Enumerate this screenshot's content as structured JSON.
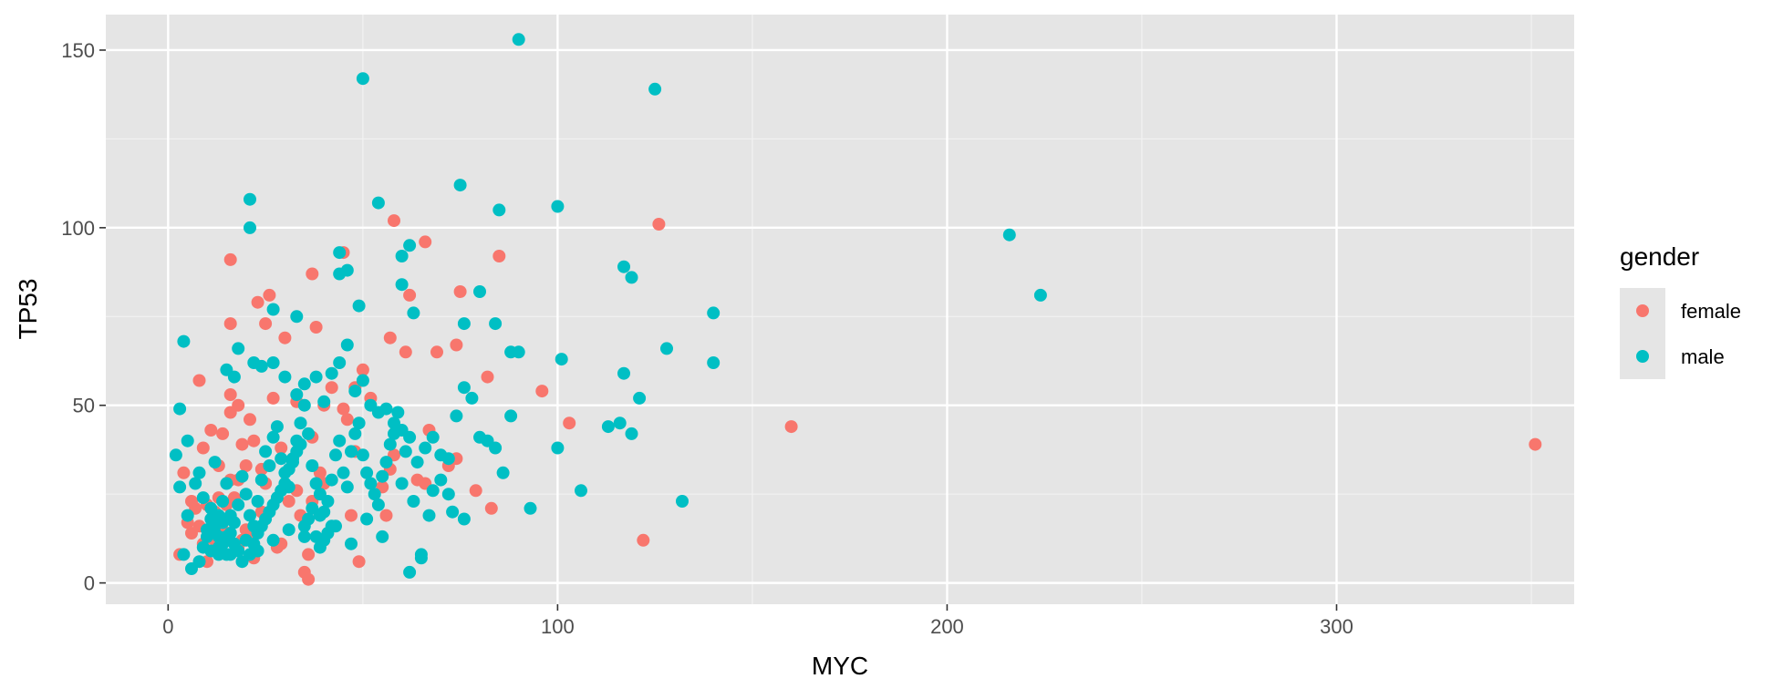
{
  "chart_data": {
    "type": "scatter",
    "xlabel": "MYC",
    "ylabel": "TP53",
    "xlim": [
      -16,
      361
    ],
    "ylim": [
      -6,
      160
    ],
    "x_ticks": [
      0,
      100,
      200,
      300
    ],
    "x_tick_labels": [
      "0",
      "100",
      "200",
      "300"
    ],
    "y_ticks": [
      0,
      50,
      100,
      150
    ],
    "y_tick_labels": [
      "0",
      "50",
      "100",
      "150"
    ],
    "grid": true,
    "background": "#e5e5e5",
    "legend": {
      "title": "gender",
      "position": "right",
      "entries": [
        {
          "label": "female",
          "color": "#F8766D"
        },
        {
          "label": "male",
          "color": "#00BFC4"
        }
      ]
    },
    "series": [
      {
        "name": "female",
        "color": "#F8766D",
        "points": [
          [
            16,
            91
          ],
          [
            26,
            81
          ],
          [
            23,
            79
          ],
          [
            30,
            69
          ],
          [
            25,
            73
          ],
          [
            16,
            73
          ],
          [
            37,
            87
          ],
          [
            38,
            72
          ],
          [
            58,
            102
          ],
          [
            66,
            96
          ],
          [
            45,
            93
          ],
          [
            62,
            81
          ],
          [
            75,
            82
          ],
          [
            85,
            92
          ],
          [
            126,
            101
          ],
          [
            57,
            69
          ],
          [
            67,
            43
          ],
          [
            74,
            35
          ],
          [
            96,
            54
          ],
          [
            103,
            45
          ],
          [
            160,
            44
          ],
          [
            351,
            39
          ],
          [
            122,
            12
          ],
          [
            83,
            21
          ],
          [
            79,
            26
          ],
          [
            82,
            58
          ],
          [
            69,
            65
          ],
          [
            74,
            67
          ],
          [
            61,
            65
          ],
          [
            52,
            52
          ],
          [
            50,
            60
          ],
          [
            48,
            55
          ],
          [
            42,
            55
          ],
          [
            45,
            49
          ],
          [
            33,
            51
          ],
          [
            27,
            52
          ],
          [
            18,
            50
          ],
          [
            16,
            48
          ],
          [
            16,
            53
          ],
          [
            8,
            57
          ],
          [
            11,
            43
          ],
          [
            14,
            42
          ],
          [
            9,
            38
          ],
          [
            21,
            46
          ],
          [
            19,
            39
          ],
          [
            13,
            33
          ],
          [
            20,
            33
          ],
          [
            24,
            32
          ],
          [
            16,
            29
          ],
          [
            18,
            29
          ],
          [
            25,
            28
          ],
          [
            13,
            24
          ],
          [
            15,
            22
          ],
          [
            17,
            24
          ],
          [
            31,
            23
          ],
          [
            33,
            26
          ],
          [
            37,
            23
          ],
          [
            34,
            19
          ],
          [
            21,
            14
          ],
          [
            19,
            12
          ],
          [
            28,
            10
          ],
          [
            36,
            8
          ],
          [
            35,
            3
          ],
          [
            36,
            1
          ],
          [
            49,
            6
          ],
          [
            47,
            19
          ],
          [
            56,
            19
          ],
          [
            57,
            32
          ],
          [
            48,
            37
          ],
          [
            37,
            41
          ],
          [
            39,
            31
          ],
          [
            46,
            46
          ],
          [
            40,
            28
          ],
          [
            58,
            36
          ],
          [
            66,
            28
          ],
          [
            29,
            11
          ],
          [
            18,
            10
          ],
          [
            22,
            7
          ],
          [
            11,
            15
          ],
          [
            6,
            14
          ],
          [
            3,
            8
          ],
          [
            4,
            31
          ],
          [
            7,
            21
          ],
          [
            5,
            17
          ],
          [
            8,
            16
          ],
          [
            10,
            22
          ],
          [
            12,
            20
          ],
          [
            14,
            15
          ],
          [
            6,
            23
          ],
          [
            24,
            20
          ],
          [
            29,
            38
          ],
          [
            22,
            40
          ],
          [
            40,
            50
          ],
          [
            55,
            27
          ],
          [
            64,
            29
          ],
          [
            72,
            33
          ],
          [
            9,
            11
          ],
          [
            10,
            6
          ],
          [
            12,
            12
          ],
          [
            20,
            15
          ]
        ]
      },
      {
        "name": "male",
        "color": "#00BFC4",
        "points": [
          [
            90,
            153
          ],
          [
            50,
            142
          ],
          [
            125,
            139
          ],
          [
            21,
            108
          ],
          [
            54,
            107
          ],
          [
            75,
            112
          ],
          [
            85,
            105
          ],
          [
            100,
            106
          ],
          [
            21,
            100
          ],
          [
            216,
            98
          ],
          [
            224,
            81
          ],
          [
            140,
            76
          ],
          [
            117,
            89
          ],
          [
            119,
            86
          ],
          [
            44,
            93
          ],
          [
            60,
            92
          ],
          [
            62,
            95
          ],
          [
            46,
            88
          ],
          [
            44,
            87
          ],
          [
            60,
            84
          ],
          [
            80,
            82
          ],
          [
            49,
            78
          ],
          [
            27,
            77
          ],
          [
            33,
            75
          ],
          [
            84,
            73
          ],
          [
            76,
            73
          ],
          [
            63,
            76
          ],
          [
            88,
            65
          ],
          [
            101,
            63
          ],
          [
            140,
            62
          ],
          [
            128,
            66
          ],
          [
            121,
            52
          ],
          [
            117,
            59
          ],
          [
            4,
            68
          ],
          [
            3,
            49
          ],
          [
            15,
            60
          ],
          [
            17,
            58
          ],
          [
            18,
            66
          ],
          [
            22,
            62
          ],
          [
            24,
            61
          ],
          [
            27,
            62
          ],
          [
            30,
            58
          ],
          [
            33,
            53
          ],
          [
            35,
            56
          ],
          [
            38,
            58
          ],
          [
            40,
            51
          ],
          [
            42,
            59
          ],
          [
            44,
            62
          ],
          [
            46,
            67
          ],
          [
            48,
            54
          ],
          [
            50,
            57
          ],
          [
            52,
            50
          ],
          [
            54,
            48
          ],
          [
            56,
            49
          ],
          [
            58,
            45
          ],
          [
            60,
            43
          ],
          [
            62,
            41
          ],
          [
            64,
            34
          ],
          [
            66,
            38
          ],
          [
            68,
            41
          ],
          [
            70,
            36
          ],
          [
            72,
            35
          ],
          [
            74,
            47
          ],
          [
            76,
            55
          ],
          [
            78,
            52
          ],
          [
            80,
            41
          ],
          [
            82,
            40
          ],
          [
            84,
            38
          ],
          [
            86,
            31
          ],
          [
            88,
            47
          ],
          [
            90,
            65
          ],
          [
            100,
            38
          ],
          [
            106,
            26
          ],
          [
            113,
            44
          ],
          [
            116,
            45
          ],
          [
            119,
            42
          ],
          [
            132,
            23
          ],
          [
            93,
            21
          ],
          [
            76,
            18
          ],
          [
            68,
            26
          ],
          [
            63,
            23
          ],
          [
            60,
            28
          ],
          [
            55,
            13
          ],
          [
            51,
            18
          ],
          [
            47,
            11
          ],
          [
            43,
            16
          ],
          [
            39,
            19
          ],
          [
            35,
            13
          ],
          [
            31,
            15
          ],
          [
            27,
            12
          ],
          [
            23,
            9
          ],
          [
            19,
            6
          ],
          [
            16,
            8
          ],
          [
            13,
            10
          ],
          [
            10,
            13
          ],
          [
            8,
            6
          ],
          [
            6,
            4
          ],
          [
            4,
            8
          ],
          [
            2,
            36
          ],
          [
            3,
            27
          ],
          [
            5,
            19
          ],
          [
            7,
            28
          ],
          [
            9,
            24
          ],
          [
            11,
            18
          ],
          [
            13,
            13
          ],
          [
            14,
            23
          ],
          [
            15,
            28
          ],
          [
            16,
            19
          ],
          [
            17,
            17
          ],
          [
            18,
            22
          ],
          [
            19,
            30
          ],
          [
            20,
            25
          ],
          [
            21,
            19
          ],
          [
            22,
            16
          ],
          [
            23,
            23
          ],
          [
            24,
            29
          ],
          [
            25,
            37
          ],
          [
            26,
            33
          ],
          [
            27,
            41
          ],
          [
            28,
            44
          ],
          [
            29,
            35
          ],
          [
            30,
            31
          ],
          [
            31,
            27
          ],
          [
            32,
            35
          ],
          [
            33,
            40
          ],
          [
            34,
            45
          ],
          [
            35,
            50
          ],
          [
            36,
            42
          ],
          [
            37,
            33
          ],
          [
            38,
            28
          ],
          [
            39,
            25
          ],
          [
            40,
            20
          ],
          [
            41,
            23
          ],
          [
            42,
            29
          ],
          [
            43,
            36
          ],
          [
            44,
            40
          ],
          [
            45,
            31
          ],
          [
            46,
            27
          ],
          [
            47,
            37
          ],
          [
            48,
            42
          ],
          [
            49,
            45
          ],
          [
            50,
            36
          ],
          [
            51,
            31
          ],
          [
            52,
            28
          ],
          [
            53,
            25
          ],
          [
            54,
            22
          ],
          [
            55,
            30
          ],
          [
            56,
            34
          ],
          [
            57,
            39
          ],
          [
            58,
            42
          ],
          [
            59,
            48
          ],
          [
            61,
            37
          ],
          [
            62,
            3
          ],
          [
            65,
            8
          ],
          [
            65,
            7
          ],
          [
            67,
            19
          ],
          [
            70,
            29
          ],
          [
            72,
            25
          ],
          [
            73,
            20
          ],
          [
            5,
            40
          ],
          [
            8,
            31
          ],
          [
            12,
            34
          ],
          [
            11,
            9
          ],
          [
            12,
            14
          ],
          [
            13,
            8
          ],
          [
            14,
            11
          ],
          [
            14,
            17
          ],
          [
            15,
            13
          ],
          [
            9,
            10
          ],
          [
            10,
            15
          ],
          [
            11,
            21
          ],
          [
            12,
            16
          ],
          [
            13,
            19
          ],
          [
            15,
            8
          ],
          [
            16,
            14
          ],
          [
            17,
            11
          ],
          [
            18,
            9
          ],
          [
            20,
            12
          ],
          [
            21,
            8
          ],
          [
            22,
            11
          ],
          [
            23,
            14
          ],
          [
            24,
            16
          ],
          [
            25,
            18
          ],
          [
            26,
            20
          ],
          [
            27,
            22
          ],
          [
            28,
            24
          ],
          [
            29,
            26
          ],
          [
            30,
            28
          ],
          [
            31,
            32
          ],
          [
            32,
            34
          ],
          [
            33,
            37
          ],
          [
            34,
            39
          ],
          [
            35,
            16
          ],
          [
            36,
            18
          ],
          [
            37,
            21
          ],
          [
            38,
            13
          ],
          [
            39,
            10
          ],
          [
            40,
            12
          ],
          [
            41,
            14
          ],
          [
            42,
            16
          ]
        ]
      }
    ]
  }
}
